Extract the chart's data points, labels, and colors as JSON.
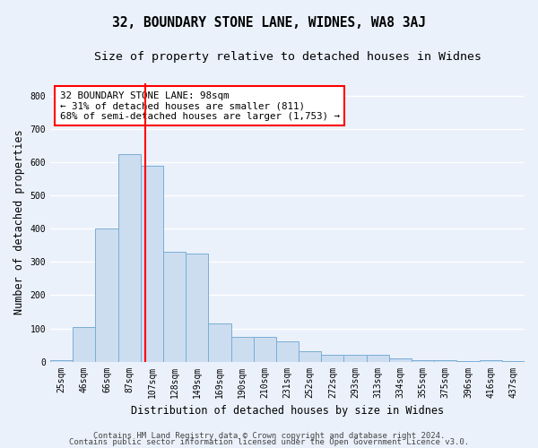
{
  "title": "32, BOUNDARY STONE LANE, WIDNES, WA8 3AJ",
  "subtitle": "Size of property relative to detached houses in Widnes",
  "xlabel": "Distribution of detached houses by size in Widnes",
  "ylabel": "Number of detached properties",
  "footer_line1": "Contains HM Land Registry data © Crown copyright and database right 2024.",
  "footer_line2": "Contains public sector information licensed under the Open Government Licence v3.0.",
  "bin_labels": [
    "25sqm",
    "46sqm",
    "66sqm",
    "87sqm",
    "107sqm",
    "128sqm",
    "149sqm",
    "169sqm",
    "190sqm",
    "210sqm",
    "231sqm",
    "252sqm",
    "272sqm",
    "293sqm",
    "313sqm",
    "334sqm",
    "355sqm",
    "375sqm",
    "396sqm",
    "416sqm",
    "437sqm"
  ],
  "bar_values": [
    5,
    105,
    400,
    625,
    590,
    330,
    325,
    115,
    75,
    75,
    60,
    30,
    20,
    20,
    20,
    10,
    5,
    5,
    2,
    5,
    2
  ],
  "bar_color": "#ccddf0",
  "bar_edge_color": "#7aadd4",
  "vline_x_index": 3.72,
  "vline_color": "red",
  "annotation_text": "32 BOUNDARY STONE LANE: 98sqm\n← 31% of detached houses are smaller (811)\n68% of semi-detached houses are larger (1,753) →",
  "annotation_box_color": "white",
  "annotation_box_edge": "red",
  "ylim": [
    0,
    840
  ],
  "yticks": [
    0,
    100,
    200,
    300,
    400,
    500,
    600,
    700,
    800
  ],
  "bg_color": "#eaf1fb",
  "grid_color": "white",
  "title_fontsize": 10.5,
  "subtitle_fontsize": 9.5,
  "label_fontsize": 8.5,
  "tick_fontsize": 7,
  "footer_fontsize": 6.5,
  "annotation_fontsize": 7.8
}
